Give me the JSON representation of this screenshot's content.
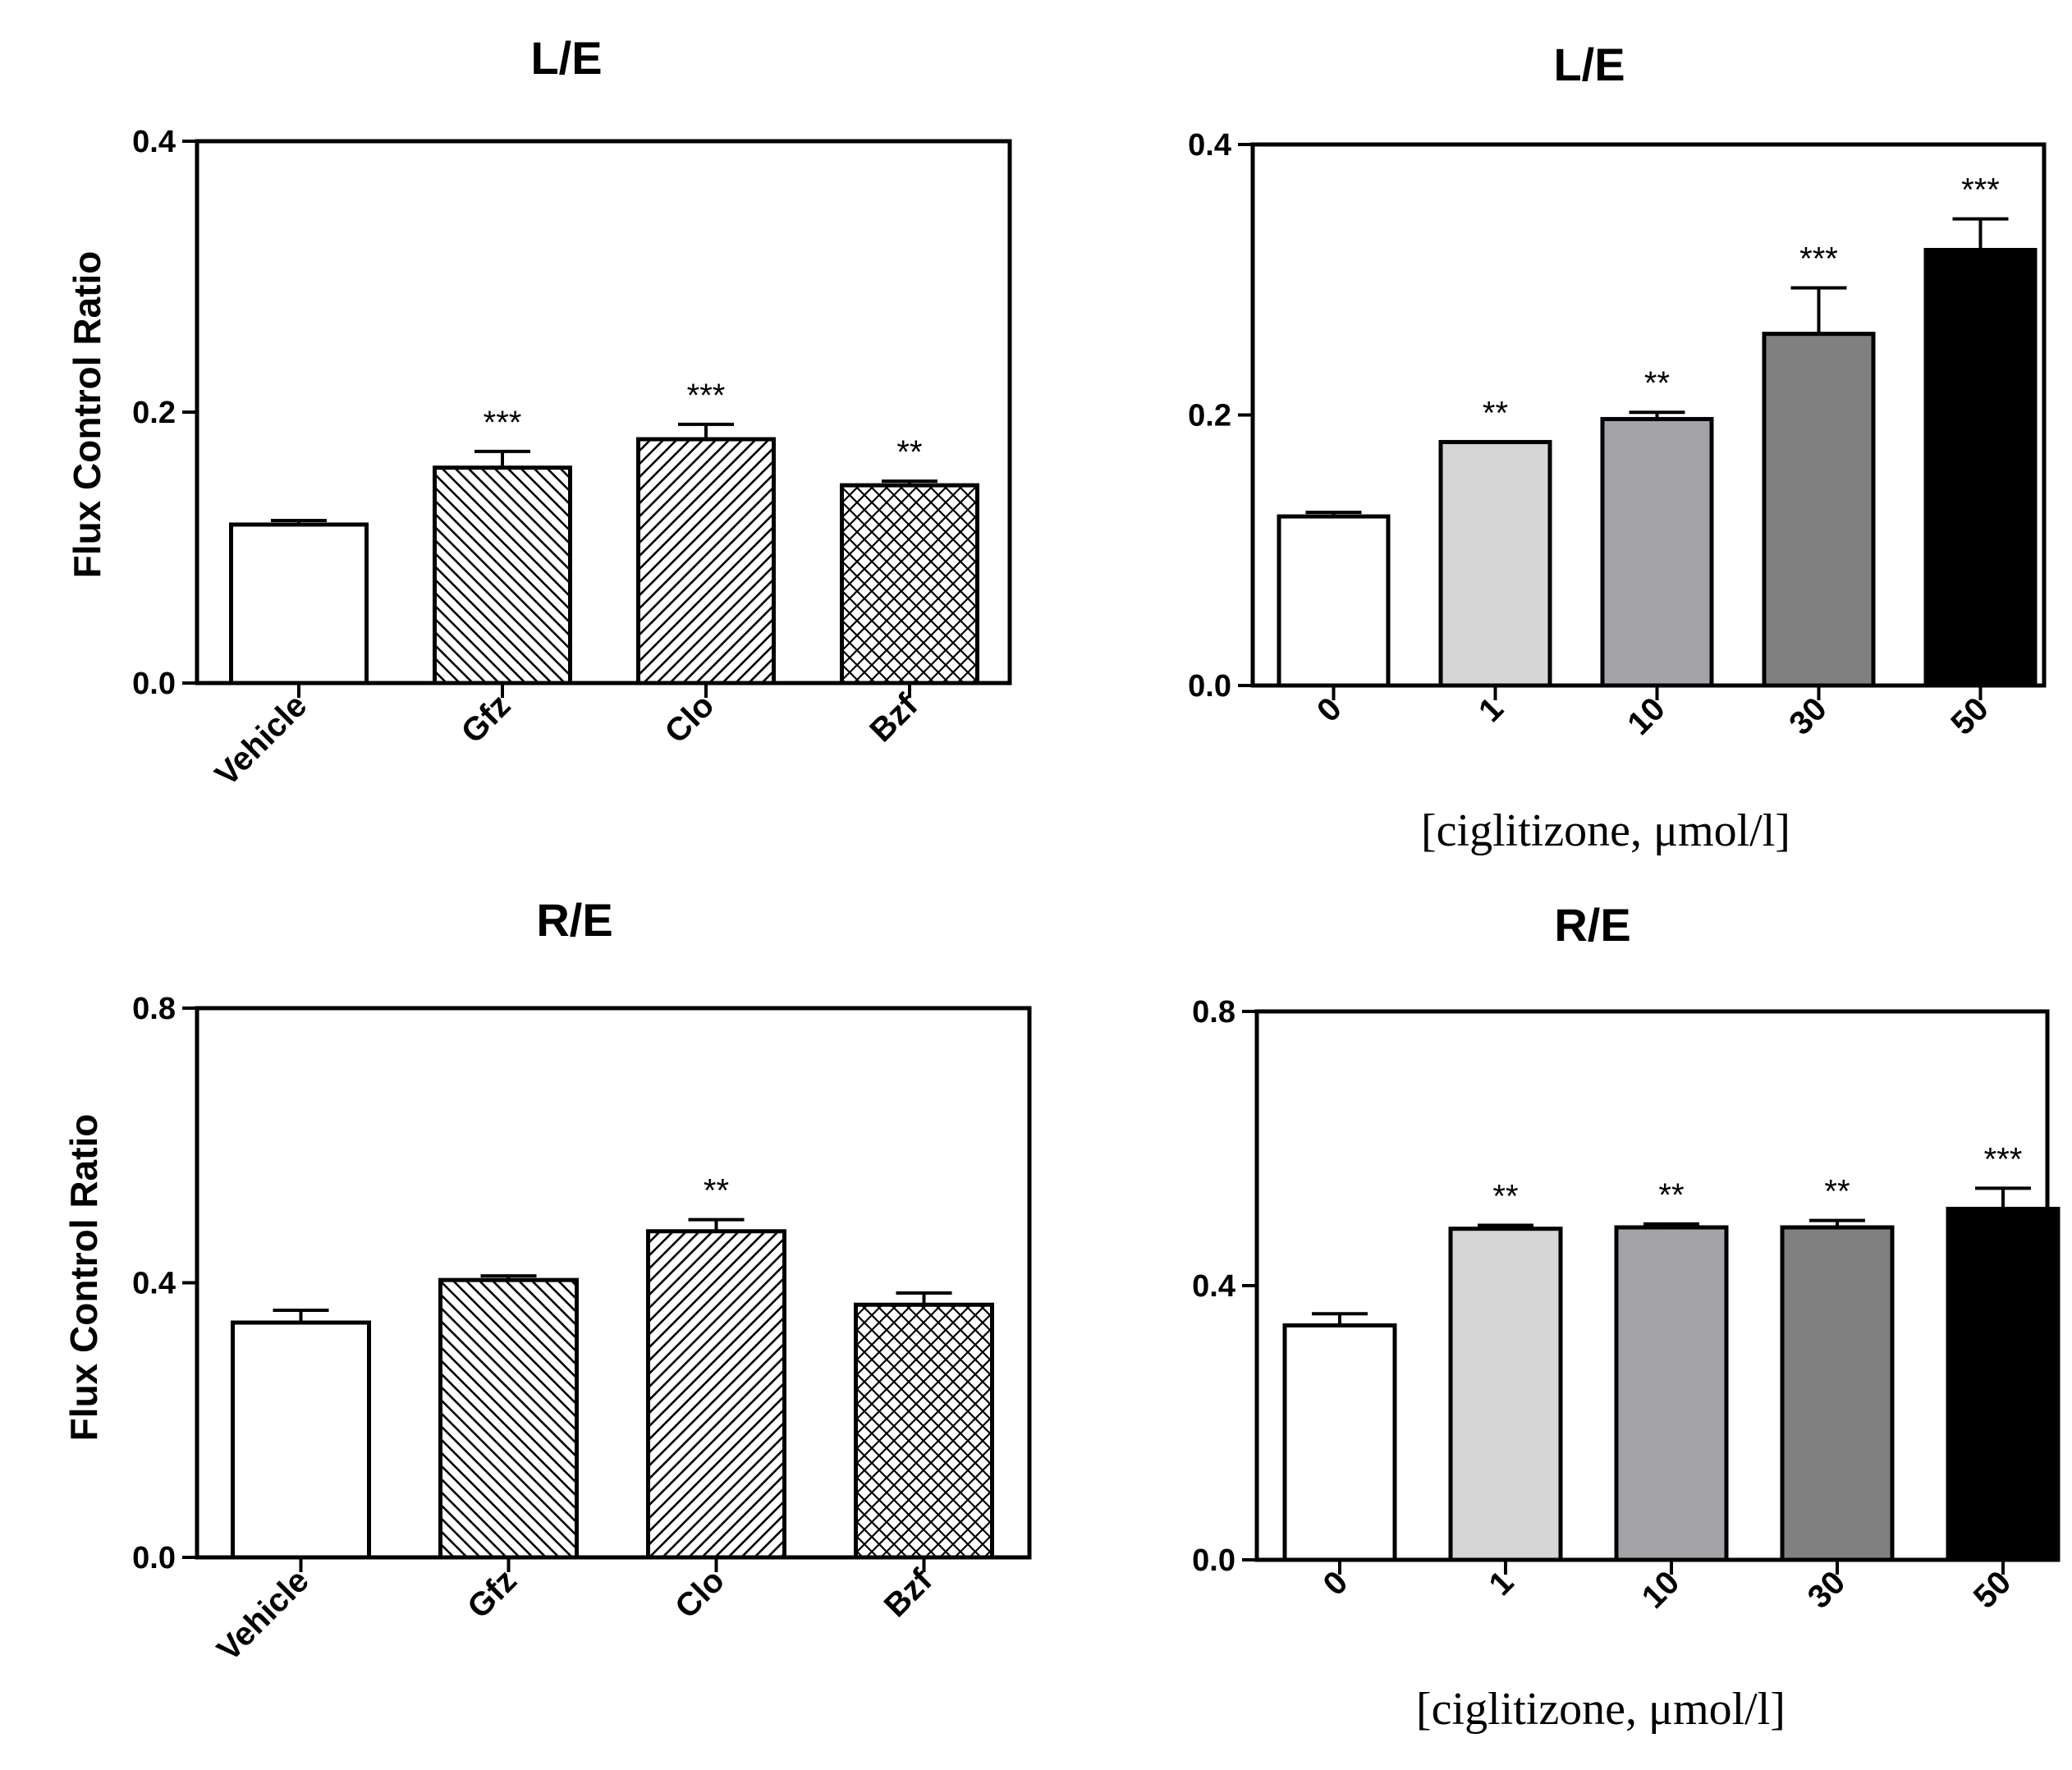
{
  "chart_data": [
    {
      "type": "bar",
      "title": "L/E",
      "ylabel": "Flux Control Ratio",
      "xlabel": "",
      "categories": [
        "Vehicle",
        "Gfz",
        "Clo",
        "Bzf"
      ],
      "values": [
        0.117,
        0.159,
        0.18,
        0.146
      ],
      "errors": [
        0.003,
        0.012,
        0.011,
        0.003
      ],
      "significance": [
        "",
        "***",
        "***",
        "**"
      ],
      "fills": [
        "white",
        "diag-down",
        "diag-up",
        "crosshatch"
      ],
      "ylim": [
        0,
        0.4
      ],
      "yticks": [
        "0.0",
        "0.2",
        "0.4"
      ]
    },
    {
      "type": "bar",
      "title": "L/E",
      "ylabel": "",
      "xlabel": "[ciglitizone, μmol/l]",
      "categories": [
        "0",
        "1",
        "10",
        "30",
        "50"
      ],
      "values": [
        0.125,
        0.18,
        0.197,
        0.26,
        0.322
      ],
      "errors": [
        0.003,
        0.0,
        0.005,
        0.034,
        0.023
      ],
      "significance": [
        "",
        "**",
        "**",
        "***",
        "***"
      ],
      "fills": [
        "#ffffff",
        "#d6d6d6",
        "#a3a3a8",
        "#808080",
        "#000000"
      ],
      "ylim": [
        0,
        0.4
      ],
      "yticks": [
        "0.0",
        "0.2",
        "0.4"
      ]
    },
    {
      "type": "bar",
      "title": "R/E",
      "ylabel": "Flux Control Ratio",
      "xlabel": "",
      "categories": [
        "Vehicle",
        "Gfz",
        "Clo",
        "Bzf"
      ],
      "values": [
        0.342,
        0.404,
        0.475,
        0.368
      ],
      "errors": [
        0.018,
        0.006,
        0.017,
        0.017
      ],
      "significance": [
        "",
        "",
        "**",
        ""
      ],
      "fills": [
        "white",
        "diag-down",
        "diag-up",
        "crosshatch"
      ],
      "ylim": [
        0,
        0.8
      ],
      "yticks": [
        "0.0",
        "0.4",
        "0.8"
      ]
    },
    {
      "type": "bar",
      "title": "R/E",
      "ylabel": "",
      "xlabel": "[ciglitizone, μmol/l]",
      "categories": [
        "0",
        "1",
        "10",
        "30",
        "50"
      ],
      "values": [
        0.342,
        0.483,
        0.485,
        0.485,
        0.512
      ],
      "errors": [
        0.017,
        0.005,
        0.005,
        0.01,
        0.03
      ],
      "significance": [
        "",
        "**",
        "**",
        "**",
        "***"
      ],
      "fills": [
        "#ffffff",
        "#d6d6d6",
        "#a3a3a8",
        "#808080",
        "#000000"
      ],
      "ylim": [
        0,
        0.8
      ],
      "yticks": [
        "0.0",
        "0.4",
        "0.8"
      ]
    }
  ]
}
